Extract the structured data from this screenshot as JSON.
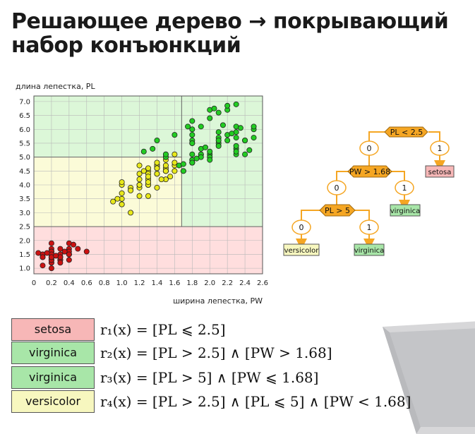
{
  "title": "Решающее дерево → покрывающий набор конъюнкций",
  "colors": {
    "setosa": "#f7b7b7",
    "virginica": "#a8e6a8",
    "versicolor": "#f7f7bf",
    "region_setosa": "#ffdede",
    "region_virginica": "#dcf7d8",
    "region_versicolor": "#fbfbd8",
    "point_setosa": "#cc1111",
    "point_versicolor": "#e8e81a",
    "point_virginica": "#22cc22",
    "tree_node": "#f5a623",
    "tree_edge": "#f5a623"
  },
  "chart_data": {
    "type": "scatter",
    "xlabel": "ширина лепестка, PW",
    "ylabel": "длина лепестка, PL",
    "xlim": [
      0,
      2.6
    ],
    "ylim": [
      0.8,
      7.2
    ],
    "xticks": [
      "0",
      "0.2",
      "0.4",
      "0.6",
      "0.8",
      "1.0",
      "1.2",
      "1.4",
      "1.6",
      "1.8",
      "2.0",
      "2.2",
      "2.4",
      "2.6"
    ],
    "yticks": [
      "1.0",
      "1.5",
      "2.0",
      "2.5",
      "3.0",
      "3.5",
      "4.0",
      "4.5",
      "5.0",
      "5.5",
      "6.0",
      "6.5",
      "7.0"
    ],
    "grid": true,
    "regions": [
      {
        "class": "setosa",
        "x": [
          0,
          2.6
        ],
        "y": [
          0.8,
          2.5
        ]
      },
      {
        "class": "versicolor",
        "x": [
          0,
          1.68
        ],
        "y": [
          2.5,
          5.0
        ]
      },
      {
        "class": "virginica",
        "x": [
          0,
          2.6
        ],
        "y": [
          5.0,
          7.2
        ]
      },
      {
        "class": "virginica",
        "x": [
          1.68,
          2.6
        ],
        "y": [
          2.5,
          5.0
        ]
      }
    ],
    "series": [
      {
        "class": "setosa",
        "points": [
          [
            0.2,
            1.4
          ],
          [
            0.2,
            1.4
          ],
          [
            0.2,
            1.3
          ],
          [
            0.2,
            1.5
          ],
          [
            0.2,
            1.4
          ],
          [
            0.4,
            1.7
          ],
          [
            0.3,
            1.4
          ],
          [
            0.2,
            1.5
          ],
          [
            0.2,
            1.4
          ],
          [
            0.1,
            1.5
          ],
          [
            0.2,
            1.5
          ],
          [
            0.2,
            1.6
          ],
          [
            0.1,
            1.4
          ],
          [
            0.1,
            1.1
          ],
          [
            0.2,
            1.2
          ],
          [
            0.4,
            1.5
          ],
          [
            0.4,
            1.3
          ],
          [
            0.3,
            1.4
          ],
          [
            0.3,
            1.7
          ],
          [
            0.3,
            1.5
          ],
          [
            0.2,
            1.7
          ],
          [
            0.4,
            1.5
          ],
          [
            0.2,
            1.0
          ],
          [
            0.5,
            1.7
          ],
          [
            0.2,
            1.9
          ],
          [
            0.2,
            1.6
          ],
          [
            0.4,
            1.6
          ],
          [
            0.2,
            1.5
          ],
          [
            0.2,
            1.4
          ],
          [
            0.2,
            1.6
          ],
          [
            0.2,
            1.6
          ],
          [
            0.4,
            1.5
          ],
          [
            0.1,
            1.5
          ],
          [
            0.2,
            1.4
          ],
          [
            0.2,
            1.5
          ],
          [
            0.2,
            1.2
          ],
          [
            0.2,
            1.3
          ],
          [
            0.1,
            1.4
          ],
          [
            0.2,
            1.3
          ],
          [
            0.2,
            1.5
          ],
          [
            0.3,
            1.3
          ],
          [
            0.3,
            1.3
          ],
          [
            0.2,
            1.3
          ],
          [
            0.6,
            1.6
          ],
          [
            0.4,
            1.9
          ],
          [
            0.3,
            1.4
          ],
          [
            0.2,
            1.6
          ],
          [
            0.2,
            1.4
          ],
          [
            0.2,
            1.5
          ],
          [
            0.2,
            1.4
          ],
          [
            0.15,
            1.55
          ],
          [
            0.25,
            1.45
          ],
          [
            0.35,
            1.6
          ],
          [
            0.05,
            1.55
          ],
          [
            0.45,
            1.85
          ],
          [
            0.3,
            1.2
          ]
        ]
      },
      {
        "class": "versicolor",
        "points": [
          [
            1.4,
            4.7
          ],
          [
            1.5,
            4.5
          ],
          [
            1.3,
            4.0
          ],
          [
            1.5,
            4.6
          ],
          [
            1.3,
            4.5
          ],
          [
            1.6,
            4.7
          ],
          [
            1.0,
            3.3
          ],
          [
            1.3,
            4.6
          ],
          [
            1.4,
            3.9
          ],
          [
            1.0,
            3.5
          ],
          [
            1.5,
            4.2
          ],
          [
            1.0,
            4.0
          ],
          [
            1.4,
            4.7
          ],
          [
            1.3,
            3.6
          ],
          [
            1.4,
            4.4
          ],
          [
            1.5,
            4.5
          ],
          [
            1.0,
            4.1
          ],
          [
            1.5,
            4.5
          ],
          [
            1.1,
            3.9
          ],
          [
            1.3,
            4.0
          ],
          [
            1.2,
            4.0
          ],
          [
            1.4,
            4.7
          ],
          [
            1.4,
            4.4
          ],
          [
            1.4,
            4.6
          ],
          [
            1.5,
            4.5
          ],
          [
            1.2,
            4.7
          ],
          [
            1.0,
            3.3
          ],
          [
            1.1,
            3.8
          ],
          [
            1.0,
            3.7
          ],
          [
            1.2,
            3.9
          ],
          [
            1.6,
            5.1
          ],
          [
            1.5,
            4.5
          ],
          [
            1.6,
            4.5
          ],
          [
            1.5,
            4.7
          ],
          [
            1.3,
            4.4
          ],
          [
            1.3,
            4.1
          ],
          [
            1.3,
            4.0
          ],
          [
            1.2,
            4.4
          ],
          [
            1.4,
            4.6
          ],
          [
            1.2,
            4.0
          ],
          [
            1.0,
            3.3
          ],
          [
            1.3,
            4.2
          ],
          [
            1.2,
            4.2
          ],
          [
            1.3,
            4.2
          ],
          [
            1.3,
            4.3
          ],
          [
            1.1,
            3.0
          ],
          [
            1.3,
            4.1
          ],
          [
            0.9,
            3.4
          ],
          [
            1.2,
            3.6
          ],
          [
            1.5,
            4.9
          ],
          [
            1.8,
            4.8
          ],
          [
            1.6,
            4.8
          ],
          [
            1.5,
            5.1
          ],
          [
            1.4,
            4.8
          ],
          [
            1.5,
            5.0
          ],
          [
            1.7,
            4.5
          ],
          [
            1.55,
            4.3
          ],
          [
            1.45,
            4.2
          ],
          [
            1.25,
            4.5
          ],
          [
            0.95,
            3.5
          ]
        ]
      },
      {
        "class": "virginica",
        "points": [
          [
            2.5,
            6.0
          ],
          [
            1.9,
            5.1
          ],
          [
            2.1,
            5.9
          ],
          [
            1.8,
            5.6
          ],
          [
            2.2,
            5.8
          ],
          [
            2.1,
            6.6
          ],
          [
            1.7,
            4.5
          ],
          [
            1.8,
            6.3
          ],
          [
            1.8,
            5.8
          ],
          [
            2.5,
            6.1
          ],
          [
            2.0,
            5.1
          ],
          [
            1.9,
            5.3
          ],
          [
            2.1,
            5.5
          ],
          [
            2.0,
            5.0
          ],
          [
            2.4,
            5.1
          ],
          [
            2.3,
            5.3
          ],
          [
            1.8,
            5.5
          ],
          [
            2.2,
            6.7
          ],
          [
            2.3,
            6.9
          ],
          [
            1.5,
            5.0
          ],
          [
            2.3,
            5.7
          ],
          [
            2.0,
            4.9
          ],
          [
            2.0,
            6.7
          ],
          [
            1.8,
            4.9
          ],
          [
            2.1,
            5.7
          ],
          [
            1.8,
            6.0
          ],
          [
            1.8,
            4.8
          ],
          [
            1.8,
            4.9
          ],
          [
            2.1,
            5.6
          ],
          [
            1.6,
            5.8
          ],
          [
            1.9,
            6.1
          ],
          [
            2.0,
            6.4
          ],
          [
            2.2,
            5.6
          ],
          [
            1.5,
            5.1
          ],
          [
            1.4,
            5.6
          ],
          [
            2.3,
            6.1
          ],
          [
            2.4,
            5.6
          ],
          [
            1.8,
            5.5
          ],
          [
            1.8,
            4.8
          ],
          [
            2.1,
            5.4
          ],
          [
            2.4,
            5.6
          ],
          [
            2.3,
            5.1
          ],
          [
            1.9,
            5.1
          ],
          [
            2.3,
            5.9
          ],
          [
            2.5,
            5.7
          ],
          [
            2.3,
            5.2
          ],
          [
            1.9,
            5.0
          ],
          [
            2.0,
            5.2
          ],
          [
            2.3,
            5.4
          ],
          [
            1.8,
            5.1
          ],
          [
            2.2,
            6.85
          ],
          [
            2.05,
            6.75
          ],
          [
            1.75,
            6.1
          ],
          [
            2.45,
            5.25
          ],
          [
            2.35,
            6.05
          ],
          [
            2.15,
            6.15
          ],
          [
            1.95,
            5.35
          ],
          [
            2.25,
            5.85
          ],
          [
            1.85,
            4.95
          ],
          [
            1.35,
            5.3
          ],
          [
            1.25,
            5.2
          ],
          [
            1.65,
            4.7
          ],
          [
            1.7,
            4.75
          ]
        ]
      }
    ]
  },
  "tree": {
    "nodes": {
      "root": "PL < 2.5",
      "n2": "PW > 1.68",
      "n3": "PL > 5"
    },
    "edge_labels": {
      "e_root_0": "0",
      "e_root_1": "1",
      "e_n2_0": "0",
      "e_n2_1": "1",
      "e_n3_0": "0",
      "e_n3_1": "1"
    },
    "leaves": {
      "leaf_setosa": "setosa",
      "leaf_virginica_1": "virginica",
      "leaf_versicolor": "versicolor",
      "leaf_virginica_2": "virginica"
    }
  },
  "rules": [
    {
      "class": "setosa",
      "formula": "r₁(x) = [PL ⩽ 2.5]"
    },
    {
      "class": "virginica",
      "formula": "r₂(x) = [PL > 2.5] ∧ [PW > 1.68]"
    },
    {
      "class": "virginica",
      "formula": "r₃(x) = [PL > 5] ∧ [PW ⩽ 1.68]"
    },
    {
      "class": "versicolor",
      "formula": "r₄(x) = [PL > 2.5] ∧ [PL ⩽ 5] ∧ [PW < 1.68]"
    }
  ]
}
